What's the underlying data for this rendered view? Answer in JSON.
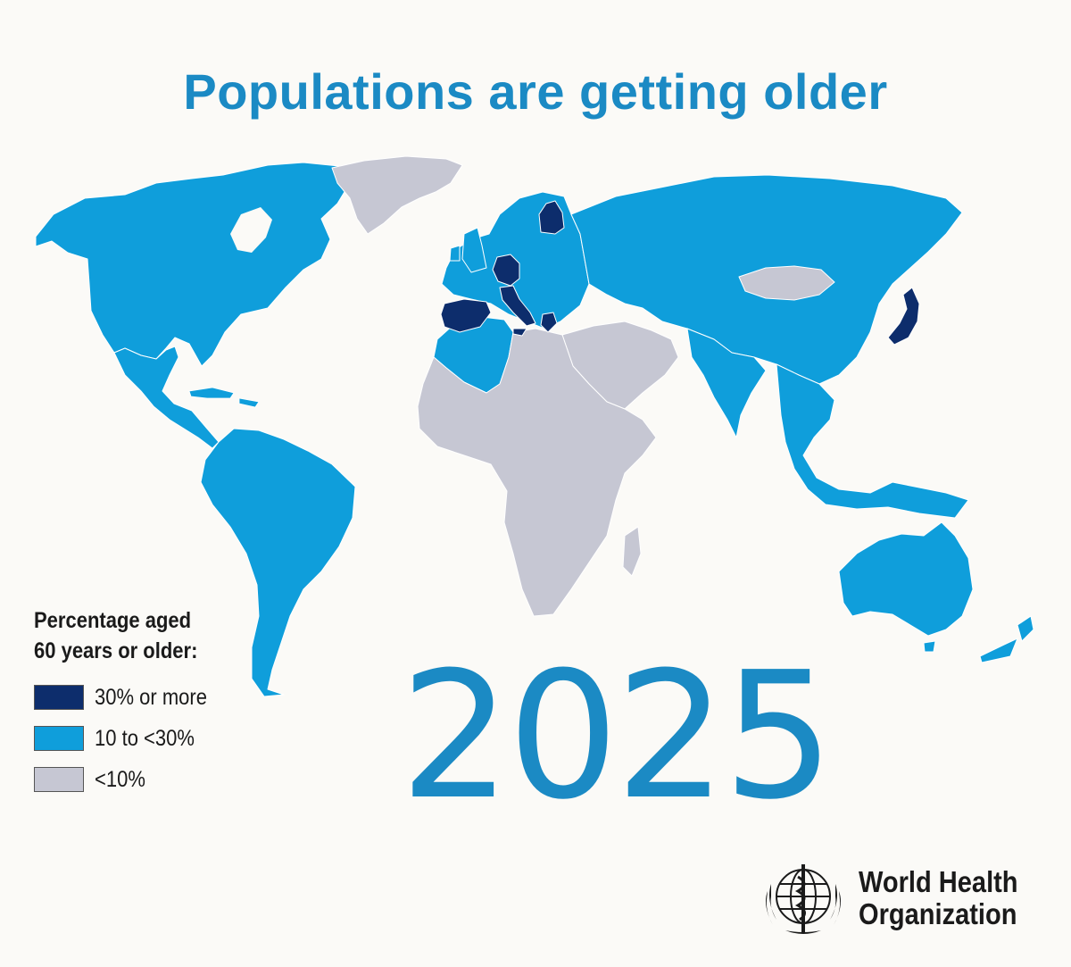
{
  "title": "Populations are getting older",
  "year": "2025",
  "colors": {
    "accent": "#1b8ac4",
    "high": "#0d2d6c",
    "mid": "#0f9edb",
    "low": "#c6c7d3",
    "border": "#ffffff"
  },
  "legend": {
    "title_line1": "Percentage aged",
    "title_line2": "60 years or older:",
    "items": [
      {
        "label": "30% or more",
        "color": "#0d2d6c"
      },
      {
        "label": "10 to <30%",
        "color": "#0f9edb"
      },
      {
        "label": "<10%",
        "color": "#c6c7d3"
      }
    ]
  },
  "map": {
    "regions": [
      {
        "name": "north-america",
        "category": "10 to <30%"
      },
      {
        "name": "greenland",
        "category": "<10%"
      },
      {
        "name": "central-america",
        "category": "10 to <30%"
      },
      {
        "name": "south-america",
        "category": "10 to <30%"
      },
      {
        "name": "europe",
        "category": "10 to <30%"
      },
      {
        "name": "finland",
        "category": "30% or more"
      },
      {
        "name": "germany",
        "category": "30% or more"
      },
      {
        "name": "italy",
        "category": "30% or more"
      },
      {
        "name": "spain-portugal",
        "category": "30% or more"
      },
      {
        "name": "greece",
        "category": "30% or more"
      },
      {
        "name": "russia-asia",
        "category": "10 to <30%"
      },
      {
        "name": "mongolia",
        "category": "<10%"
      },
      {
        "name": "japan",
        "category": "30% or more"
      },
      {
        "name": "africa",
        "category": "<10%"
      },
      {
        "name": "north-africa",
        "category": "10 to <30%"
      },
      {
        "name": "middle-east",
        "category": "<10%"
      },
      {
        "name": "south-asia",
        "category": "10 to <30%"
      },
      {
        "name": "southeast-asia",
        "category": "10 to <30%"
      },
      {
        "name": "australia",
        "category": "10 to <30%"
      },
      {
        "name": "new-zealand",
        "category": "10 to <30%"
      }
    ]
  },
  "org": {
    "line1": "World Health",
    "line2": "Organization",
    "icon": "who-emblem-icon"
  }
}
